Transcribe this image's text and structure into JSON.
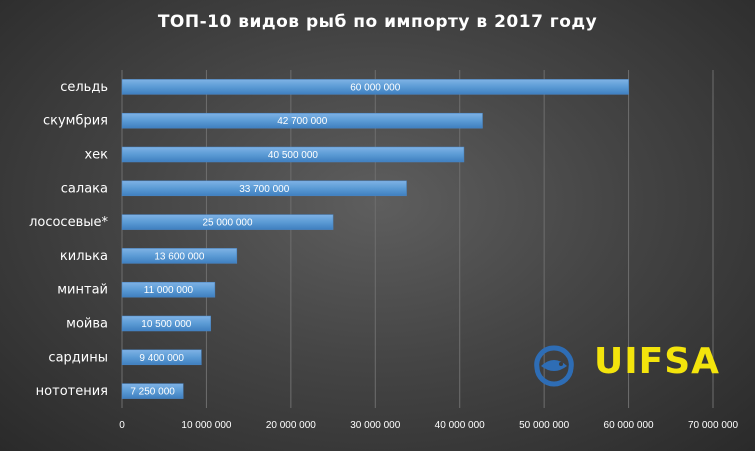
{
  "chart_data": {
    "type": "bar",
    "orientation": "horizontal",
    "title": "ТОП-10 видов рыб по импорту в 2017 году",
    "categories": [
      "сельдь",
      "скумбрия",
      "хек",
      "салака",
      "лососевые*",
      "килька",
      "минтай",
      "мойва",
      "сардины",
      "нототения"
    ],
    "values": [
      60000000,
      42700000,
      40500000,
      33700000,
      25000000,
      13600000,
      11000000,
      10500000,
      9400000,
      7250000
    ],
    "value_labels": [
      "60 000 000",
      "42 700 000",
      "40 500 000",
      "33 700 000",
      "25 000 000",
      "13 600 000",
      "11 000 000",
      "10 500 000",
      "9 400 000",
      "7 250 000"
    ],
    "xlim": [
      0,
      70000000
    ],
    "x_ticks": [
      0,
      10000000,
      20000000,
      30000000,
      40000000,
      50000000,
      60000000,
      70000000
    ],
    "x_tick_labels": [
      "0",
      "10 000 000",
      "20 000 000",
      "30 000 000",
      "40 000 000",
      "50 000 000",
      "60 000 000",
      "70 000 000"
    ],
    "xlabel": "",
    "ylabel": "",
    "grid": true,
    "bar_color": "#5b9bd5"
  },
  "logo": {
    "text": "UIFSA",
    "icon": "fish-globe-icon",
    "text_color": "#f3e40c",
    "icon_color": "#2e6db5"
  }
}
